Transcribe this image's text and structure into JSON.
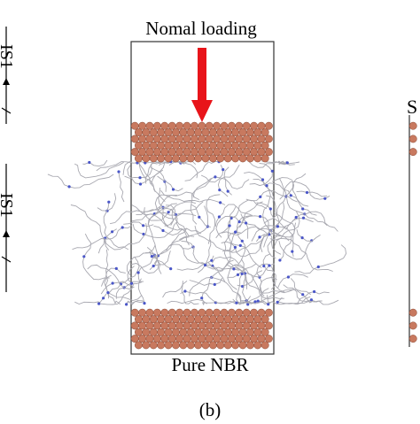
{
  "panel_b": {
    "loading_label": "Nomal loading",
    "material_label": "Pure NBR",
    "panel_letter": "(b)"
  },
  "right_panel": {
    "partial_letter": "S"
  },
  "left_panel": {
    "partial_labels": [
      "IS1",
      "IS1"
    ]
  },
  "colors": {
    "arrow": "#e8141a",
    "copper_atom": "#c8795f",
    "copper_edge": "#8a4a36",
    "chain": "#a8a8b0",
    "nitrogen": "#4a56c8",
    "box_line": "#333333"
  },
  "icons": {
    "arrow": "down-arrow-icon"
  }
}
